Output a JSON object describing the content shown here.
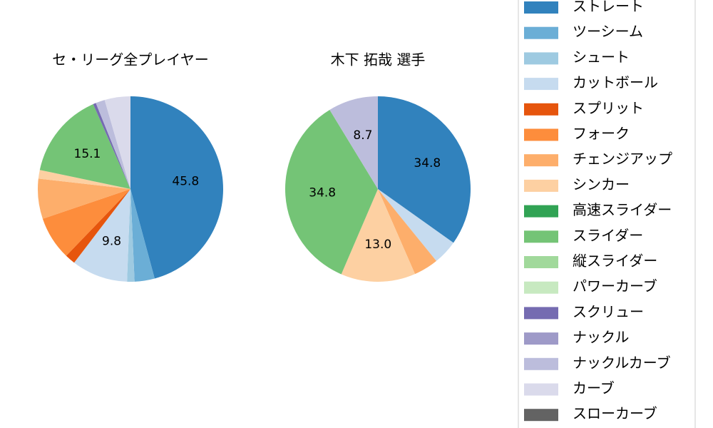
{
  "chart_data": [
    {
      "type": "pie",
      "title": "セ・リーグ全プレイヤー",
      "values": [
        45.8,
        3.5,
        1.3,
        9.8,
        1.8,
        7.6,
        7.0,
        1.5,
        0,
        15.1,
        0,
        0,
        0.5,
        0,
        1.6,
        4.5,
        0
      ],
      "value_labels": [
        "45.8",
        null,
        null,
        "9.8",
        null,
        null,
        null,
        null,
        null,
        "15.1",
        null,
        null,
        null,
        null,
        null,
        null,
        null
      ]
    },
    {
      "type": "pie",
      "title": "木下 拓哉  選手",
      "values": [
        34.8,
        0,
        0,
        4.3,
        0,
        0,
        4.3,
        13.0,
        0,
        34.8,
        0,
        0,
        0,
        0,
        8.7,
        0,
        0
      ],
      "value_labels": [
        "34.8",
        null,
        null,
        null,
        null,
        null,
        null,
        "13.0",
        null,
        "34.8",
        null,
        null,
        null,
        null,
        "8.7",
        null,
        null
      ]
    }
  ],
  "legend": {
    "categories": [
      "ストレート",
      "ツーシーム",
      "シュート",
      "カットボール",
      "スプリット",
      "フォーク",
      "チェンジアップ",
      "シンカー",
      "高速スライダー",
      "スライダー",
      "縦スライダー",
      "パワーカーブ",
      "スクリュー",
      "ナックル",
      "ナックルカーブ",
      "カーブ",
      "スローカーブ"
    ],
    "colors": [
      "#3182bd",
      "#6baed6",
      "#9ecae1",
      "#c6dbef",
      "#e6550d",
      "#fd8d3c",
      "#fdae6b",
      "#fdd0a2",
      "#31a354",
      "#74c476",
      "#a1d99b",
      "#c7e9c0",
      "#756bb1",
      "#9e9ac8",
      "#bcbddc",
      "#dadaeb",
      "#636363"
    ]
  }
}
